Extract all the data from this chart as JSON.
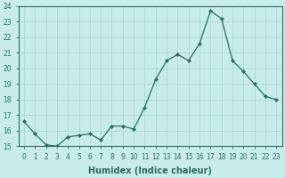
{
  "x": [
    0,
    1,
    2,
    3,
    4,
    5,
    6,
    7,
    8,
    9,
    10,
    11,
    12,
    13,
    14,
    15,
    16,
    17,
    18,
    19,
    20,
    21,
    22,
    23
  ],
  "y": [
    16.6,
    15.8,
    15.1,
    15.0,
    15.6,
    15.7,
    15.8,
    15.4,
    16.3,
    16.3,
    16.1,
    17.5,
    19.3,
    20.5,
    20.9,
    20.5,
    21.6,
    23.7,
    23.2,
    20.5,
    19.8,
    19.0,
    18.2,
    18.0
  ],
  "ylim": [
    15,
    24
  ],
  "yticks": [
    15,
    16,
    17,
    18,
    19,
    20,
    21,
    22,
    23,
    24
  ],
  "xticks": [
    0,
    1,
    2,
    3,
    4,
    5,
    6,
    7,
    8,
    9,
    10,
    11,
    12,
    13,
    14,
    15,
    16,
    17,
    18,
    19,
    20,
    21,
    22,
    23
  ],
  "xlabel": "Humidex (Indice chaleur)",
  "line_color": "#2d6b5e",
  "marker": "D",
  "marker_size": 2.0,
  "bg_color": "#c8ede8",
  "grid_color": "#a8d5cf",
  "tick_fontsize": 5.5,
  "xlabel_fontsize": 7,
  "xlabel_bold": true
}
